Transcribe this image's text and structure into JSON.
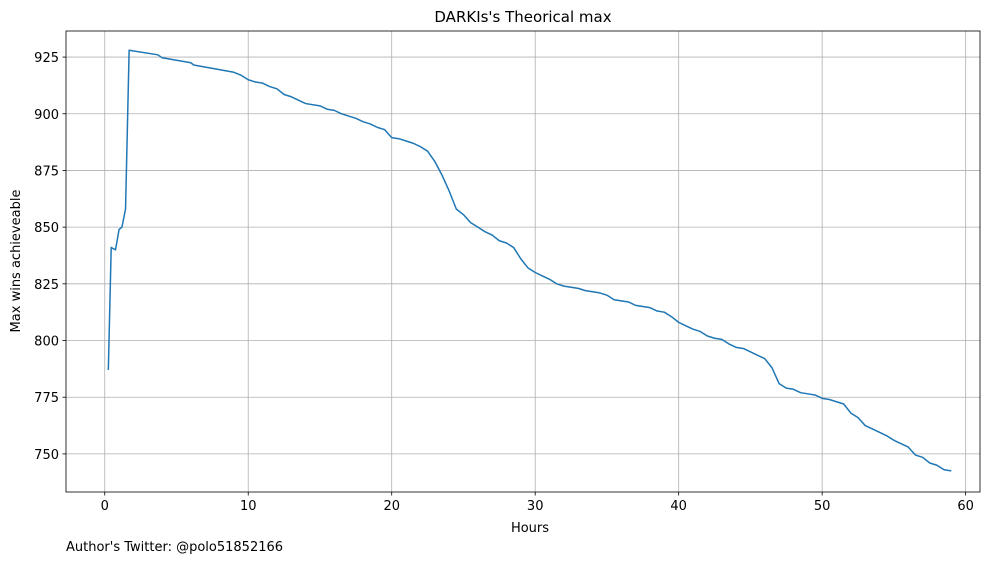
{
  "chart_data": {
    "type": "line",
    "title": "DARKIs's Theorical max",
    "xlabel": "Hours",
    "ylabel": "Max wins achieveable",
    "footnote": "Author's Twitter: @polo51852166",
    "x": [
      0.25,
      0.45,
      0.75,
      1.0,
      1.2,
      1.45,
      1.7,
      3.7,
      4,
      6,
      6.2,
      9,
      9.5,
      10,
      10.5,
      11,
      11.5,
      12,
      12.5,
      13,
      13.5,
      14,
      15,
      15.5,
      16,
      16.5,
      17,
      17.5,
      18,
      18.5,
      19,
      19.5,
      20,
      20.5,
      21,
      21.5,
      22,
      22.5,
      23,
      23.5,
      24,
      24.5,
      25,
      25.5,
      26,
      26.5,
      27,
      27.5,
      28,
      28.5,
      29,
      29.5,
      30,
      30.5,
      31,
      31.5,
      32,
      33,
      33.5,
      34.5,
      35,
      35.5,
      36.5,
      37,
      38,
      38.5,
      39,
      39.5,
      40,
      40.5,
      41,
      41.5,
      42,
      42.5,
      43,
      43.5,
      44,
      44.5,
      45,
      45.5,
      46,
      46.5,
      47,
      47.5,
      48,
      48.5,
      49,
      49.5,
      50,
      50.5,
      51,
      51.5,
      52,
      52.5,
      53,
      53.5,
      54,
      54.5,
      55,
      55.5,
      56,
      56.5,
      57,
      57.5,
      58,
      58.5,
      59
    ],
    "series": [
      {
        "color": "#1f77b4",
        "values": [
          787,
          841,
          840,
          849,
          850,
          858,
          928,
          926,
          924.7,
          922.5,
          921.5,
          918.3,
          917,
          915,
          914,
          913.5,
          912,
          911,
          908.5,
          907.5,
          906,
          904.5,
          903.5,
          902,
          901.5,
          900,
          899,
          898,
          896.5,
          895.5,
          894,
          893,
          889.5,
          889,
          888,
          887,
          885.5,
          883.5,
          879,
          873,
          866,
          858,
          855.5,
          852,
          850,
          848,
          846.5,
          844,
          843,
          841,
          836,
          832,
          830,
          828.5,
          827,
          825,
          824,
          823,
          822,
          821,
          820,
          818,
          817,
          815.5,
          814.5,
          813,
          812.5,
          810.5,
          808,
          806.5,
          805,
          804,
          802,
          801,
          800.5,
          798.5,
          797,
          796.5,
          795,
          793.5,
          792,
          788,
          781,
          779,
          778.5,
          777,
          776.5,
          776,
          774.5,
          774,
          773,
          772,
          768,
          766,
          762.5,
          761,
          759.5,
          758,
          756,
          754.5,
          753,
          749.5,
          748.5,
          746,
          745,
          743,
          742.5
        ]
      }
    ],
    "xlim": [
      -2.7,
      61.0
    ],
    "ylim": [
      733.2,
      936.5
    ],
    "xticks": [
      0,
      10,
      20,
      30,
      40,
      50,
      60
    ],
    "yticks": [
      750,
      775,
      800,
      825,
      850,
      875,
      900,
      925
    ],
    "grid": true
  }
}
